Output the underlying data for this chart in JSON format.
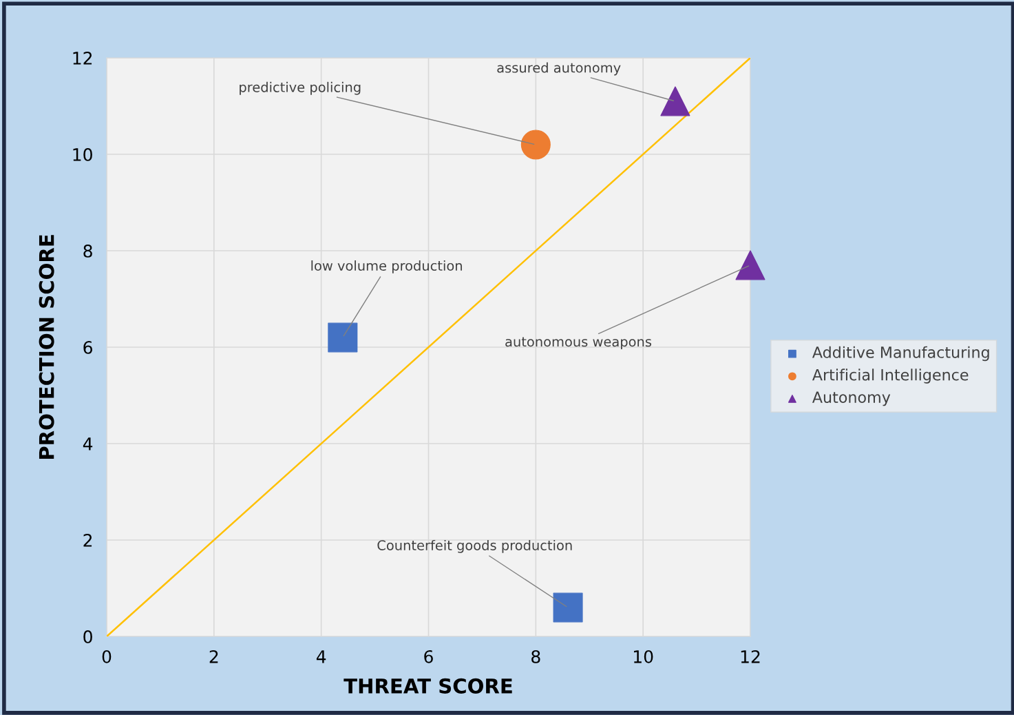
{
  "chart_data": {
    "type": "scatter",
    "xlabel": "THREAT SCORE",
    "ylabel": "PROTECTION SCORE",
    "xlim": [
      0,
      12
    ],
    "ylim": [
      0,
      12
    ],
    "xticks": [
      0,
      2,
      4,
      6,
      8,
      10,
      12
    ],
    "yticks": [
      0,
      2,
      4,
      6,
      8,
      10,
      12
    ],
    "grid": true,
    "legend": "right",
    "series": [
      {
        "name": "Additive Manufacturing",
        "color": "#4472c4",
        "marker": "square",
        "x": [
          4.4,
          8.6
        ],
        "values": [
          6.2,
          0.6
        ]
      },
      {
        "name": "Artificial Intelligence",
        "color": "#ed7d31",
        "marker": "circle",
        "x": [
          8.0
        ],
        "values": [
          10.2
        ]
      },
      {
        "name": "Autonomy",
        "color": "#7030a0",
        "marker": "triangle",
        "x": [
          10.6,
          12.0
        ],
        "values": [
          11.1,
          7.7
        ]
      },
      {
        "type": "line",
        "color": "#ffc000",
        "marker": "none",
        "x": [
          0,
          12
        ],
        "values": [
          0,
          12
        ]
      }
    ],
    "annotations": [
      {
        "text": "low volume production",
        "x": 4.4,
        "y": 6.2
      },
      {
        "text": "Counterfeit goods production",
        "x": 8.6,
        "y": 0.6
      },
      {
        "text": "predictive policing",
        "x": 8.0,
        "y": 10.2
      },
      {
        "text": "assured autonomy",
        "x": 10.6,
        "y": 11.1
      },
      {
        "text": "autonomous weapons",
        "x": 12.0,
        "y": 7.7
      }
    ]
  }
}
